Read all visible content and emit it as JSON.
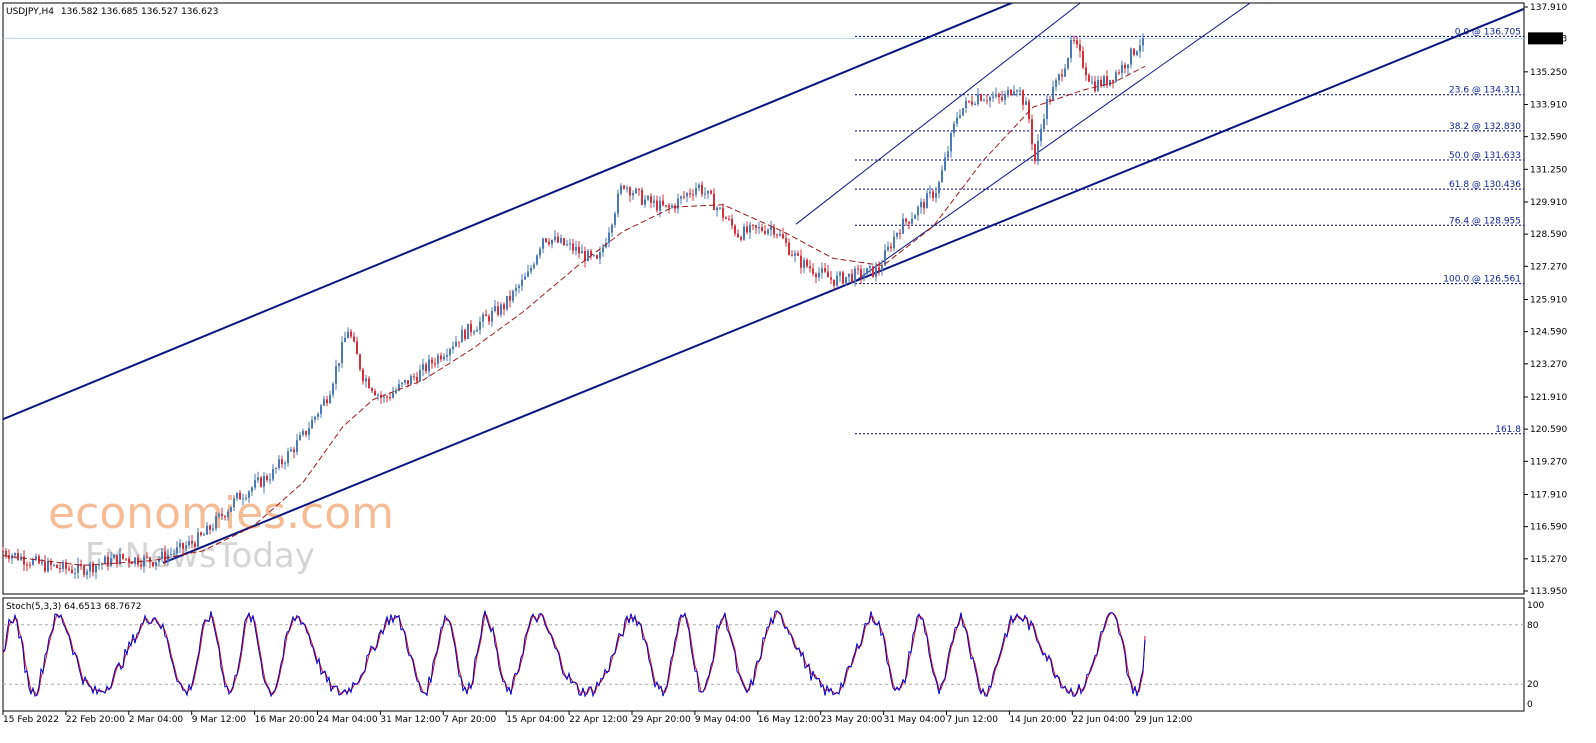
{
  "header": {
    "symbol": "USDJPY,H4",
    "ohlc": "136.582 136.685 136.527 136.623"
  },
  "current_price": "136.623",
  "watermark": {
    "top": "economies.com",
    "bottom": "FxNewsToday"
  },
  "colors": {
    "bull": "#4b7ab5",
    "bear": "#d2303a",
    "ma": "#9b1c1c",
    "channel": "#0b1580",
    "fib": "#000080",
    "stoch_main": "#0000cc",
    "stoch_signal": "#dd1111",
    "current_price_line": "#b9d4ec",
    "price_tag_bg": "#000000",
    "price_tag_text": "#ffffff",
    "watermark_top": "#f4b183",
    "watermark_bottom": "#c8c8c8"
  },
  "chart_data": [
    {
      "type": "candlestick",
      "title": "USDJPY,H4",
      "ylim": [
        113.95,
        137.91
      ],
      "y_ticks": [
        "137.910",
        "136.623",
        "135.250",
        "133.910",
        "132.590",
        "131.250",
        "129.910",
        "128.590",
        "127.270",
        "125.910",
        "124.590",
        "123.270",
        "121.910",
        "120.590",
        "119.270",
        "117.910",
        "116.590",
        "115.270",
        "113.950"
      ],
      "x_ticks": [
        "15 Feb 2022",
        "22 Feb 20:00",
        "2 Mar 04:00",
        "9 Mar 12:00",
        "16 Mar 20:00",
        "24 Mar 04:00",
        "31 Mar 12:00",
        "7 Apr 20:00",
        "15 Apr 04:00",
        "22 Apr 12:00",
        "29 Apr 20:00",
        "9 May 04:00",
        "16 May 12:00",
        "23 May 20:00",
        "31 May 04:00",
        "7 Jun 12:00",
        "14 Jun 20:00",
        "22 Jun 04:00",
        "29 Jun 12:00"
      ],
      "path_keypoints": [
        {
          "t": 0,
          "p": 115.6
        },
        {
          "t": 40,
          "p": 115.0
        },
        {
          "t": 75,
          "p": 114.8
        },
        {
          "t": 115,
          "p": 115.3
        },
        {
          "t": 150,
          "p": 115.2
        },
        {
          "t": 175,
          "p": 115.6
        },
        {
          "t": 200,
          "p": 116.2
        },
        {
          "t": 235,
          "p": 117.8
        },
        {
          "t": 270,
          "p": 118.8
        },
        {
          "t": 300,
          "p": 120.3
        },
        {
          "t": 325,
          "p": 122.0
        },
        {
          "t": 345,
          "p": 124.7
        },
        {
          "t": 360,
          "p": 122.8
        },
        {
          "t": 380,
          "p": 121.8
        },
        {
          "t": 420,
          "p": 123.0
        },
        {
          "t": 460,
          "p": 124.5
        },
        {
          "t": 500,
          "p": 125.6
        },
        {
          "t": 525,
          "p": 126.9
        },
        {
          "t": 540,
          "p": 128.5
        },
        {
          "t": 570,
          "p": 128.0
        },
        {
          "t": 595,
          "p": 127.4
        },
        {
          "t": 620,
          "p": 130.7
        },
        {
          "t": 640,
          "p": 130.0
        },
        {
          "t": 665,
          "p": 129.6
        },
        {
          "t": 695,
          "p": 130.6
        },
        {
          "t": 710,
          "p": 129.9
        },
        {
          "t": 735,
          "p": 128.6
        },
        {
          "t": 770,
          "p": 128.9
        },
        {
          "t": 795,
          "p": 127.5
        },
        {
          "t": 830,
          "p": 126.7
        },
        {
          "t": 850,
          "p": 126.9
        },
        {
          "t": 875,
          "p": 127.1
        },
        {
          "t": 895,
          "p": 128.8
        },
        {
          "t": 915,
          "p": 129.6
        },
        {
          "t": 935,
          "p": 130.5
        },
        {
          "t": 955,
          "p": 133.6
        },
        {
          "t": 975,
          "p": 134.3
        },
        {
          "t": 1000,
          "p": 134.1
        },
        {
          "t": 1013,
          "p": 134.8
        },
        {
          "t": 1025,
          "p": 133.6
        },
        {
          "t": 1032,
          "p": 131.6
        },
        {
          "t": 1042,
          "p": 133.8
        },
        {
          "t": 1055,
          "p": 134.9
        },
        {
          "t": 1070,
          "p": 136.5
        },
        {
          "t": 1090,
          "p": 134.7
        },
        {
          "t": 1105,
          "p": 134.9
        },
        {
          "t": 1120,
          "p": 135.5
        },
        {
          "t": 1140,
          "p": 136.62
        }
      ],
      "moving_average_keypoints": [
        {
          "t": 0,
          "p": 115.4
        },
        {
          "t": 80,
          "p": 115.0
        },
        {
          "t": 150,
          "p": 115.2
        },
        {
          "t": 200,
          "p": 115.6
        },
        {
          "t": 250,
          "p": 116.6
        },
        {
          "t": 300,
          "p": 118.4
        },
        {
          "t": 340,
          "p": 120.7
        },
        {
          "t": 370,
          "p": 121.8
        },
        {
          "t": 420,
          "p": 122.6
        },
        {
          "t": 470,
          "p": 123.9
        },
        {
          "t": 520,
          "p": 125.4
        },
        {
          "t": 575,
          "p": 127.3
        },
        {
          "t": 620,
          "p": 128.7
        },
        {
          "t": 670,
          "p": 129.7
        },
        {
          "t": 720,
          "p": 129.8
        },
        {
          "t": 780,
          "p": 128.7
        },
        {
          "t": 830,
          "p": 127.6
        },
        {
          "t": 880,
          "p": 127.3
        },
        {
          "t": 930,
          "p": 128.9
        },
        {
          "t": 980,
          "p": 131.6
        },
        {
          "t": 1030,
          "p": 133.8
        },
        {
          "t": 1080,
          "p": 134.5
        },
        {
          "t": 1110,
          "p": 134.8
        },
        {
          "t": 1143,
          "p": 135.5
        }
      ],
      "channel_lines": [
        {
          "name": "outer-upper",
          "from": {
            "t": 0,
            "p": 121.0
          },
          "to": {
            "t": 1022,
            "p": 138.3
          }
        },
        {
          "name": "outer-lower",
          "from": {
            "t": 160,
            "p": 115.1
          },
          "to": {
            "t": 1525,
            "p": 137.9
          }
        },
        {
          "name": "inner-upper",
          "from": {
            "t": 793,
            "p": 129.0
          },
          "to": {
            "t": 1078,
            "p": 138.1
          }
        },
        {
          "name": "inner-lower",
          "from": {
            "t": 850,
            "p": 126.6
          },
          "to": {
            "t": 1248,
            "p": 138.1
          }
        }
      ],
      "fibonacci_levels": [
        {
          "label": "0.0 @ 136.705",
          "price": 136.705
        },
        {
          "label": "23.6 @ 134.311",
          "price": 134.311
        },
        {
          "label": "38.2 @ 132.830",
          "price": 132.83
        },
        {
          "label": "50.0 @ 131.633",
          "price": 131.633
        },
        {
          "label": "61.8 @ 130.436",
          "price": 130.436
        },
        {
          "label": "76.4 @ 128.955",
          "price": 128.955
        },
        {
          "label": "100.0 @ 126.561",
          "price": 126.561
        },
        {
          "label": "161.8",
          "price": 120.4
        }
      ],
      "fibonacci_start_t": 852
    },
    {
      "type": "line",
      "title": "Stoch(5,3,3) 64.6513 68.7672",
      "ylim": [
        0,
        100
      ],
      "y_ticks": [
        "100",
        "80",
        "20",
        "0"
      ],
      "levels": [
        80,
        20
      ],
      "series": [
        {
          "name": "Stoch main",
          "value_last": 64.6513
        },
        {
          "name": "Stoch signal",
          "value_last": 68.7672
        }
      ]
    }
  ]
}
